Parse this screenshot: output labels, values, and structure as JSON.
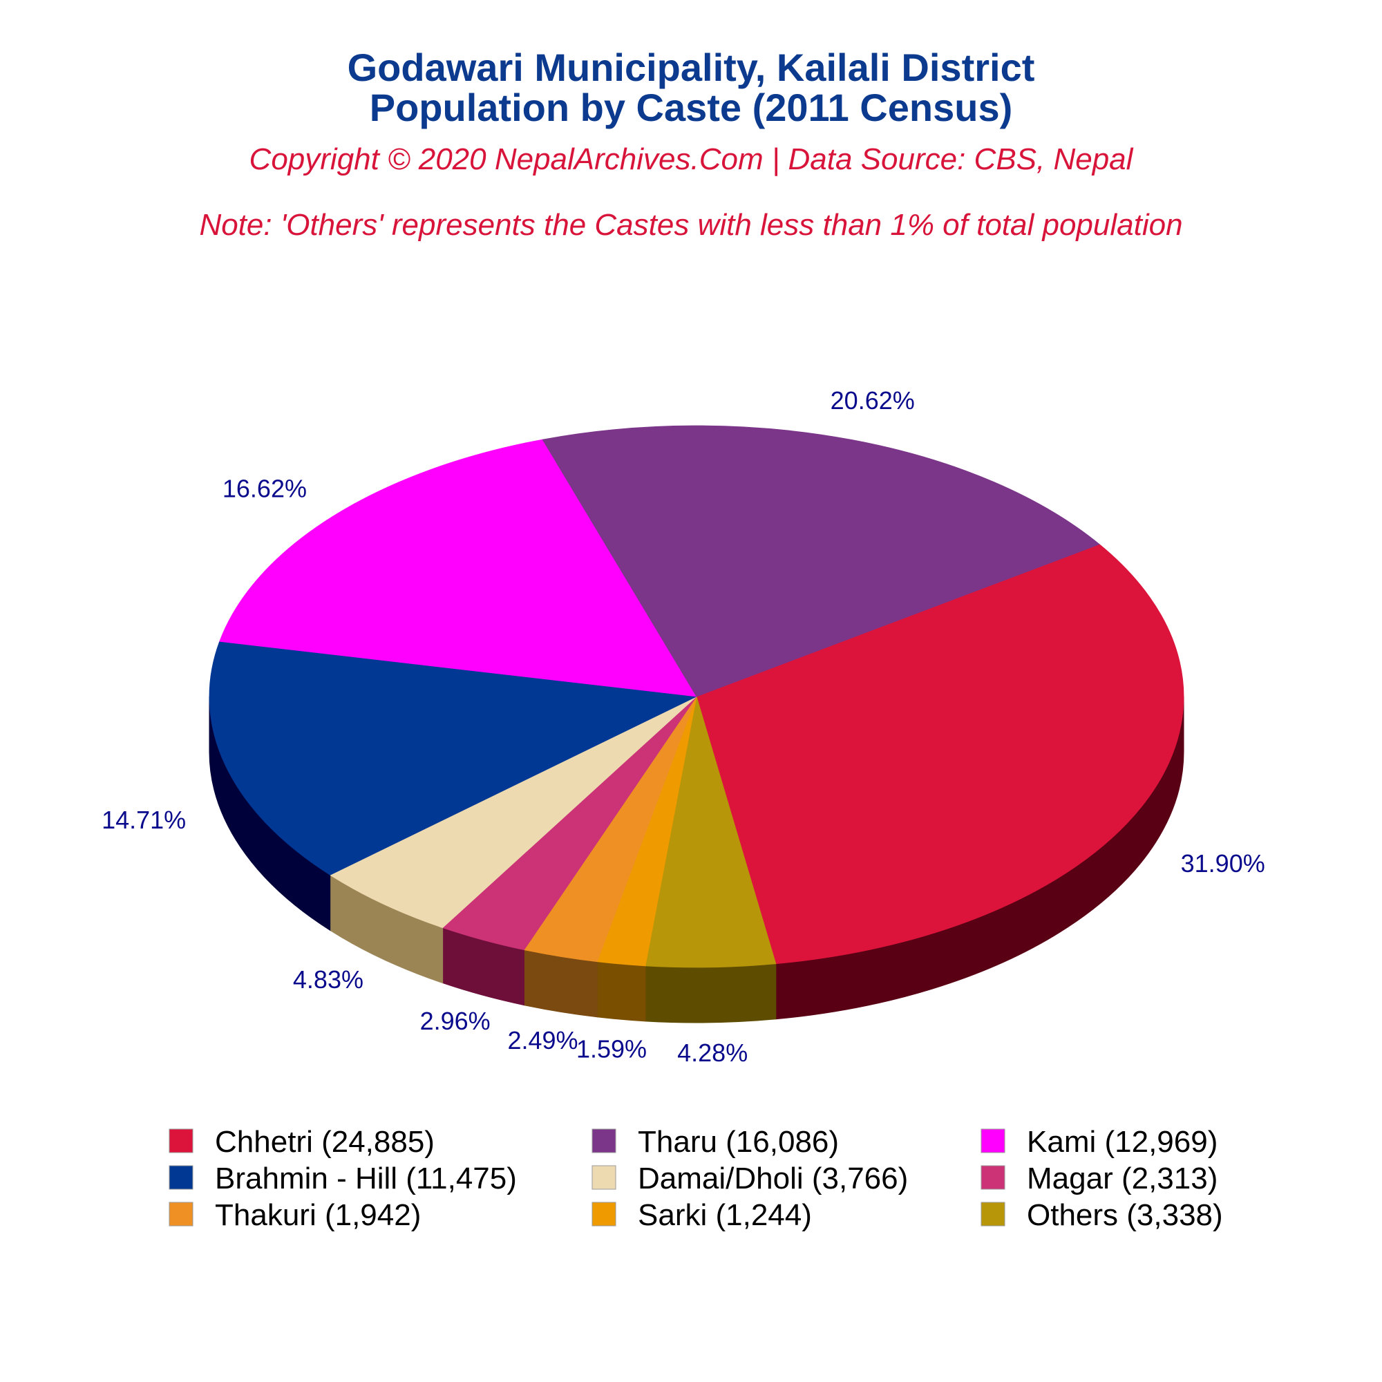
{
  "title_line1": "Godawari Municipality, Kailali District",
  "title_line2": "Population by Caste (2011 Census)",
  "copyright": "Copyright © 2020 NepalArchives.Com | Data Source: CBS, Nepal",
  "note": "Note: 'Others' represents the Castes with less than 1% of total population",
  "chart_data": {
    "type": "pie",
    "style": "3d",
    "slices": [
      {
        "name": "Chhetri",
        "value": 24885,
        "percent_label": "31.90%",
        "legend_label": "Chhetri (24,885)",
        "color": "#dc143c",
        "side_color": "#5a0014"
      },
      {
        "name": "Others",
        "value": 3338,
        "percent_label": "4.28%",
        "legend_label": "Others (3,338)",
        "color": "#b8960a",
        "side_color": "#5e4c00"
      },
      {
        "name": "Sarki",
        "value": 1244,
        "percent_label": "1.59%",
        "legend_label": "Sarki (1,244)",
        "color": "#ef9b00",
        "side_color": "#7a4f00"
      },
      {
        "name": "Thakuri",
        "value": 1942,
        "percent_label": "2.49%",
        "legend_label": "Thakuri (1,942)",
        "color": "#ee9024",
        "side_color": "#7a4a10"
      },
      {
        "name": "Magar",
        "value": 2313,
        "percent_label": "2.96%",
        "legend_label": "Magar (2,313)",
        "color": "#cc3377",
        "side_color": "#6e0f3a"
      },
      {
        "name": "Damai/Dholi",
        "value": 3766,
        "percent_label": "4.83%",
        "legend_label": "Damai/Dholi (3,766)",
        "color": "#eddab1",
        "side_color": "#9c8555"
      },
      {
        "name": "Brahmin - Hill",
        "value": 11475,
        "percent_label": "14.71%",
        "legend_label": "Brahmin - Hill (11,475)",
        "color": "#003893",
        "side_color": "#00003a"
      },
      {
        "name": "Kami",
        "value": 12969,
        "percent_label": "16.62%",
        "legend_label": "Kami (12,969)",
        "color": "#ff00ff",
        "side_color": "#a800a8"
      },
      {
        "name": "Tharu",
        "value": 16086,
        "percent_label": "20.62%",
        "legend_label": "Tharu (16,086)",
        "color": "#7b3589",
        "side_color": "#24002e"
      }
    ],
    "legend_order": [
      "Chhetri",
      "Tharu",
      "Kami",
      "Brahmin - Hill",
      "Damai/Dholi",
      "Magar",
      "Thakuri",
      "Sarki",
      "Others"
    ],
    "legend_position": "bottom"
  }
}
